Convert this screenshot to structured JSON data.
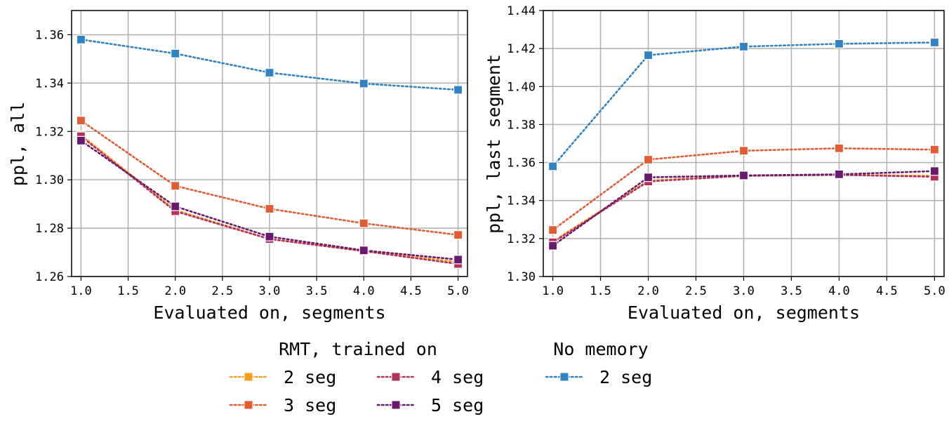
{
  "chart_data": [
    {
      "type": "line",
      "xlabel": "Evaluated on, segments",
      "ylabel": "ppl, all",
      "xlim": [
        0.9,
        5.1
      ],
      "ylim": [
        1.26,
        1.37
      ],
      "xticks": [
        1.0,
        1.5,
        2.0,
        2.5,
        3.0,
        3.5,
        4.0,
        4.5,
        5.0
      ],
      "yticks": [
        1.26,
        1.28,
        1.3,
        1.32,
        1.34,
        1.36
      ],
      "grid": true,
      "x": [
        1.0,
        2.0,
        3.0,
        4.0,
        5.0
      ],
      "series": [
        {
          "name": "2 seg",
          "group": "RMT, trained on",
          "color": "#f5a01a",
          "values": [
            1.3185,
            1.2875,
            1.2755,
            1.2705,
            1.266
          ]
        },
        {
          "name": "3 seg",
          "group": "RMT, trained on",
          "color": "#e45a32",
          "values": [
            1.3245,
            1.2975,
            1.288,
            1.282,
            1.2772
          ]
        },
        {
          "name": "4 seg",
          "group": "RMT, trained on",
          "color": "#b6305e",
          "values": [
            1.318,
            1.287,
            1.2755,
            1.2705,
            1.2652
          ]
        },
        {
          "name": "5 seg",
          "group": "RMT, trained on",
          "color": "#6a1a6e",
          "values": [
            1.3162,
            1.289,
            1.2765,
            1.2708,
            1.267
          ]
        },
        {
          "name": "2 seg",
          "group": "No memory",
          "color": "#3182c2",
          "values": [
            1.358,
            1.3522,
            1.3443,
            1.3398,
            1.3372
          ]
        }
      ]
    },
    {
      "type": "line",
      "xlabel": "Evaluated on, segments",
      "ylabel": "ppl, last segment",
      "xlim": [
        0.9,
        5.1
      ],
      "ylim": [
        1.3,
        1.44
      ],
      "xticks": [
        1.0,
        1.5,
        2.0,
        2.5,
        3.0,
        3.5,
        4.0,
        4.5,
        5.0
      ],
      "yticks": [
        1.3,
        1.32,
        1.34,
        1.36,
        1.38,
        1.4,
        1.42,
        1.44
      ],
      "grid": true,
      "x": [
        1.0,
        2.0,
        3.0,
        4.0,
        5.0
      ],
      "series": [
        {
          "name": "2 seg",
          "group": "RMT, trained on",
          "color": "#f5a01a",
          "values": [
            1.3185,
            1.3505,
            1.353,
            1.3535,
            1.353
          ]
        },
        {
          "name": "3 seg",
          "group": "RMT, trained on",
          "color": "#e45a32",
          "values": [
            1.3245,
            1.3615,
            1.3662,
            1.3675,
            1.3668
          ]
        },
        {
          "name": "4 seg",
          "group": "RMT, trained on",
          "color": "#b6305e",
          "values": [
            1.318,
            1.35,
            1.353,
            1.3535,
            1.3525
          ]
        },
        {
          "name": "5 seg",
          "group": "RMT, trained on",
          "color": "#6a1a6e",
          "values": [
            1.3162,
            1.3522,
            1.3532,
            1.3538,
            1.3555
          ]
        },
        {
          "name": "2 seg",
          "group": "No memory",
          "color": "#3182c2",
          "values": [
            1.358,
            1.4165,
            1.421,
            1.4225,
            1.4232
          ]
        }
      ]
    }
  ],
  "legend": {
    "placement": "bottom-center",
    "group_titles": [
      "RMT, trained on",
      "No memory"
    ],
    "entries": [
      {
        "label": "2 seg",
        "color": "#f5a01a"
      },
      {
        "label": "3 seg",
        "color": "#e45a32"
      },
      {
        "label": "4 seg",
        "color": "#b6305e"
      },
      {
        "label": "5 seg",
        "color": "#6a1a6e"
      },
      {
        "label": "2 seg",
        "color": "#3182c2"
      }
    ]
  }
}
